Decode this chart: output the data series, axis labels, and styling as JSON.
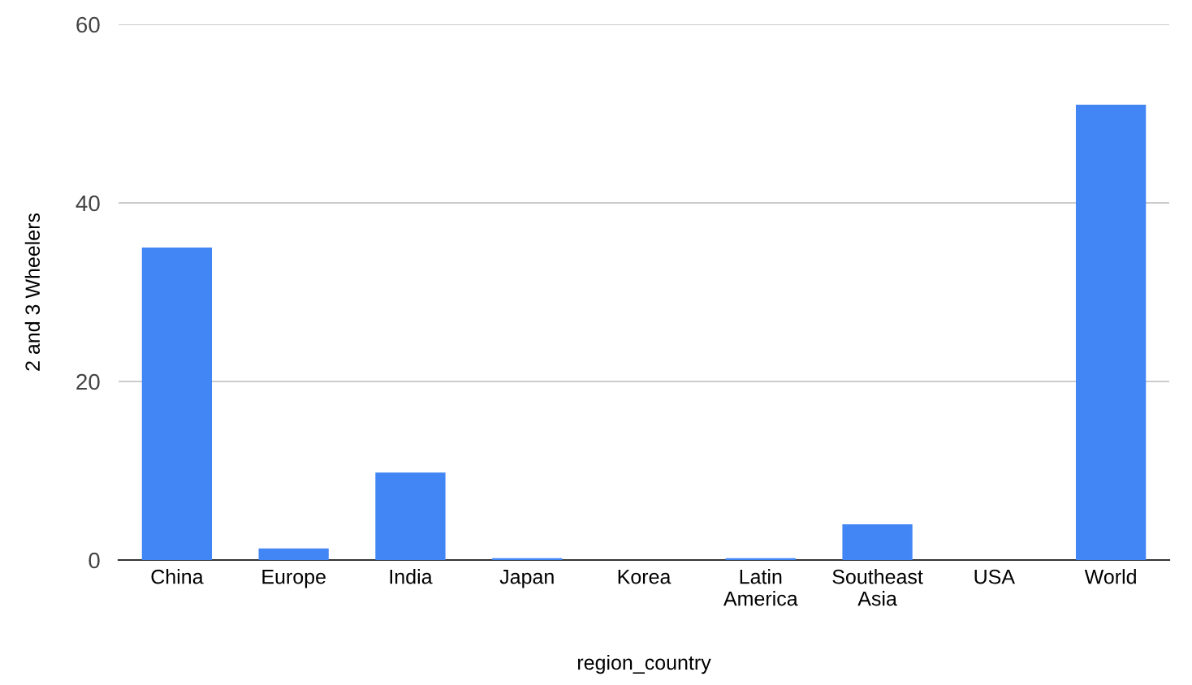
{
  "chart_data": {
    "type": "bar",
    "xlabel": "region_country",
    "ylabel": "2 and 3 Wheelers",
    "categories": [
      "China",
      "Europe",
      "India",
      "Japan",
      "Korea",
      "Latin America",
      "Southeast Asia",
      "USA",
      "World"
    ],
    "series": [
      {
        "color": "#4285f4",
        "values": [
          35,
          1.3,
          9.8,
          0.2,
          0,
          0.2,
          4,
          0,
          51
        ]
      }
    ],
    "ylim": [
      0,
      60
    ],
    "yticks": [
      0,
      20,
      40,
      60
    ],
    "grid": "y"
  }
}
